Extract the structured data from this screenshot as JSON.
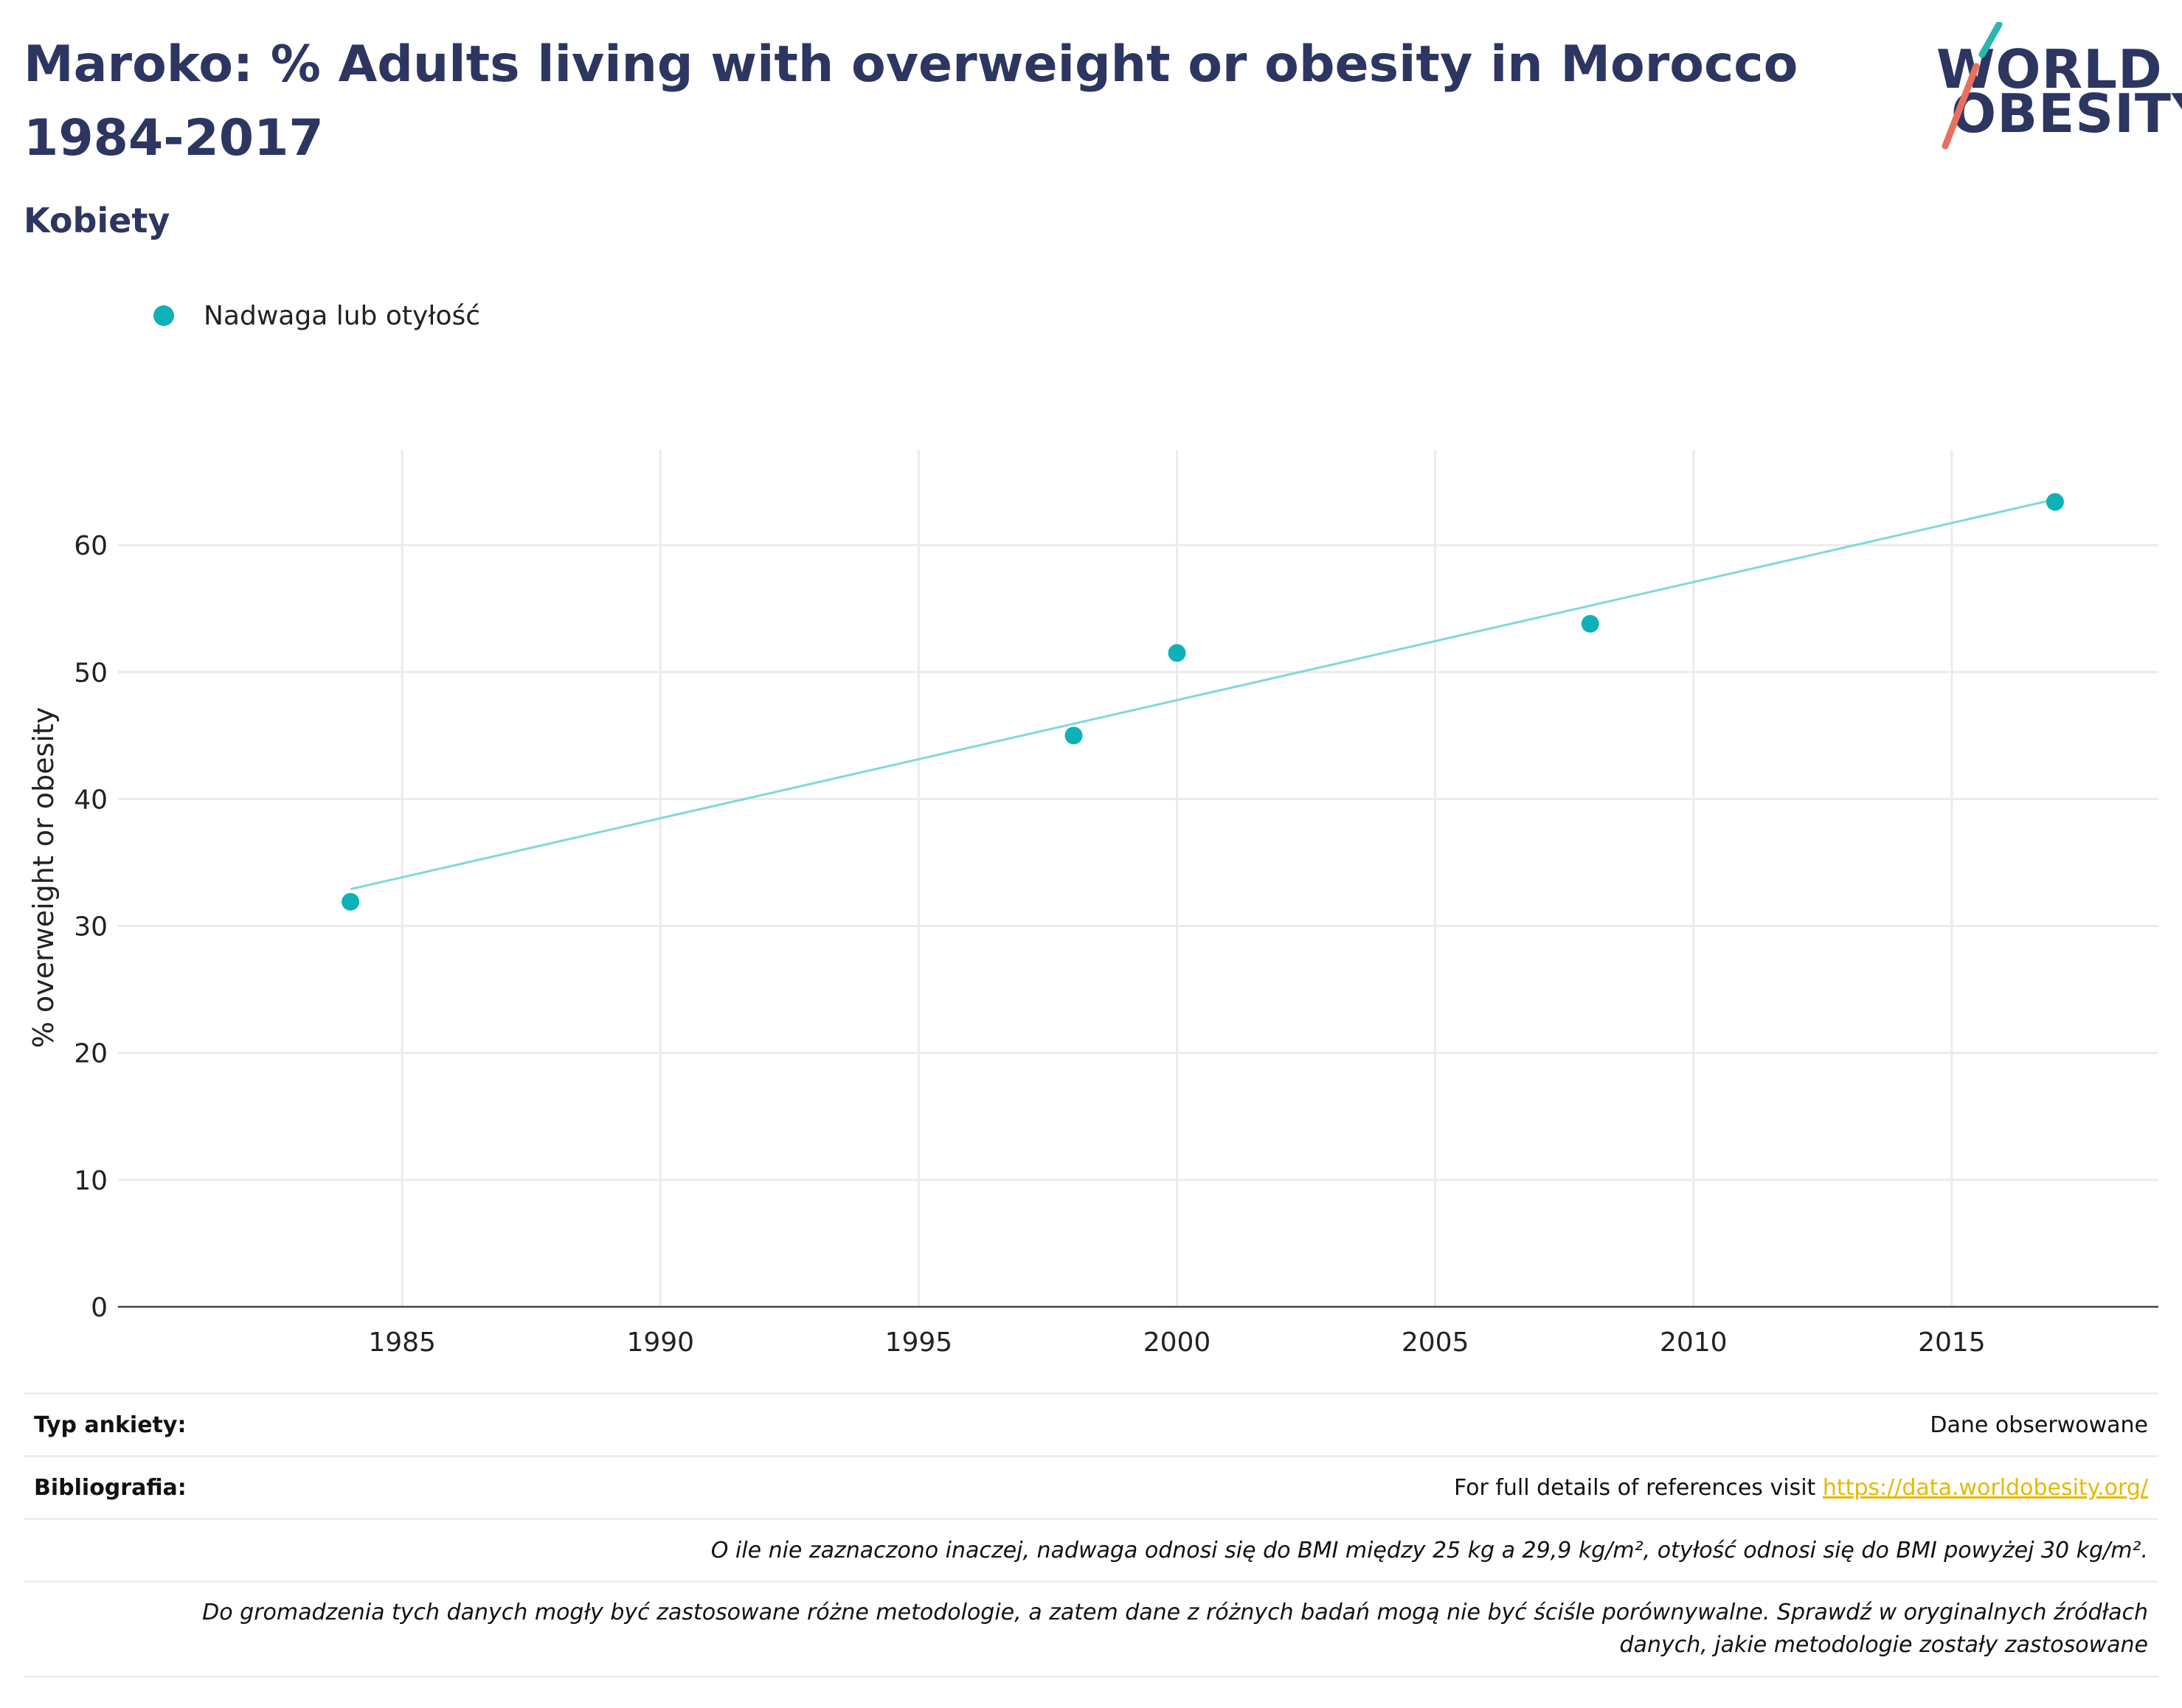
{
  "title": "Maroko: % Adults living with overweight or obesity in Morocco 1984-2017",
  "subtitle": "Kobiety",
  "logo": {
    "line1": "WORLD",
    "line2": "OBESITY"
  },
  "legend": {
    "label": "Nadwaga lub otyłość"
  },
  "chart_data": {
    "type": "scatter",
    "ylabel": "% overweight or obesity",
    "xlabel": "",
    "xlim": [
      1979.5,
      2019
    ],
    "ylim": [
      0,
      67.5
    ],
    "x_ticks": [
      1985,
      1990,
      1995,
      2000,
      2005,
      2010,
      2015
    ],
    "y_ticks": [
      0,
      10,
      20,
      30,
      40,
      50,
      60
    ],
    "grid": true,
    "legend_position": "top-left",
    "series": [
      {
        "name": "Nadwaga lub otyłość",
        "color": "#0fb1b8",
        "points": [
          {
            "x": 1984,
            "y": 31.9
          },
          {
            "x": 1998,
            "y": 45.0
          },
          {
            "x": 2000,
            "y": 51.5
          },
          {
            "x": 2008,
            "y": 53.8
          },
          {
            "x": 2017,
            "y": 63.4
          }
        ]
      }
    ],
    "trendline": {
      "color": "#7fd8dc",
      "x": [
        1984,
        2017
      ],
      "y": [
        32.9,
        63.6
      ]
    }
  },
  "info": {
    "survey_label": "Typ ankiety:",
    "survey_value": "Dane obserwowane",
    "biblio_label": "Bibliografia:",
    "biblio_text": "For full details of references visit",
    "biblio_link": "https://data.worldobesity.org/",
    "note1": "O ile nie zaznaczono inaczej, nadwaga odnosi się do BMI między 25 kg a 29,9 kg/m², otyłość odnosi się do BMI powyżej 30 kg/m².",
    "note2_line1": "Do gromadzenia tych danych mogły być zastosowane różne metodologie, a zatem dane z różnych badań mogą nie być ściśle porównywalne. Sprawdź w oryginalnych źródłach",
    "note2_line2": "danych, jakie metodologie zostały zastosowane"
  }
}
